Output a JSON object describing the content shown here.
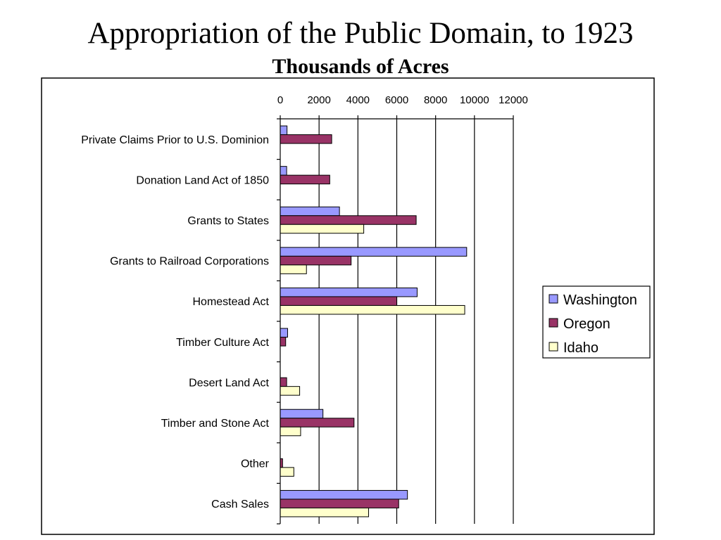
{
  "slide": {
    "title": "Appropriation of the Public Domain, to 1923",
    "subtitle": "Thousands of Acres"
  },
  "chart_data": {
    "type": "bar",
    "orientation": "horizontal",
    "title": "Appropriation of the Public Domain, to 1923",
    "subtitle": "Thousands of Acres",
    "xlim": [
      0,
      12000
    ],
    "x_ticks": [
      0,
      2000,
      4000,
      6000,
      8000,
      10000,
      12000
    ],
    "x_axis_position": "top",
    "gridlines": "vertical",
    "legend_position": "right",
    "categories": [
      "Private Claims Prior to U.S. Dominion",
      "Donation Land Act of 1850",
      "Grants to States",
      "Grants to Railroad Corporations",
      "Homestead Act",
      "Timber Culture Act",
      "Desert Land Act",
      "Timber and Stone Act",
      "Other",
      "Cash Sales"
    ],
    "series": [
      {
        "name": "Washington",
        "color": "#9999ff",
        "values": [
          350,
          330,
          3050,
          9600,
          7050,
          380,
          0,
          2200,
          0,
          6550
        ]
      },
      {
        "name": "Oregon",
        "color": "#993366",
        "values": [
          2650,
          2550,
          7000,
          3650,
          6000,
          280,
          330,
          3800,
          120,
          6100
        ]
      },
      {
        "name": "Idaho",
        "color": "#ffffcc",
        "values": [
          0,
          0,
          4300,
          1350,
          9500,
          0,
          1000,
          1050,
          700,
          4550
        ]
      }
    ]
  }
}
